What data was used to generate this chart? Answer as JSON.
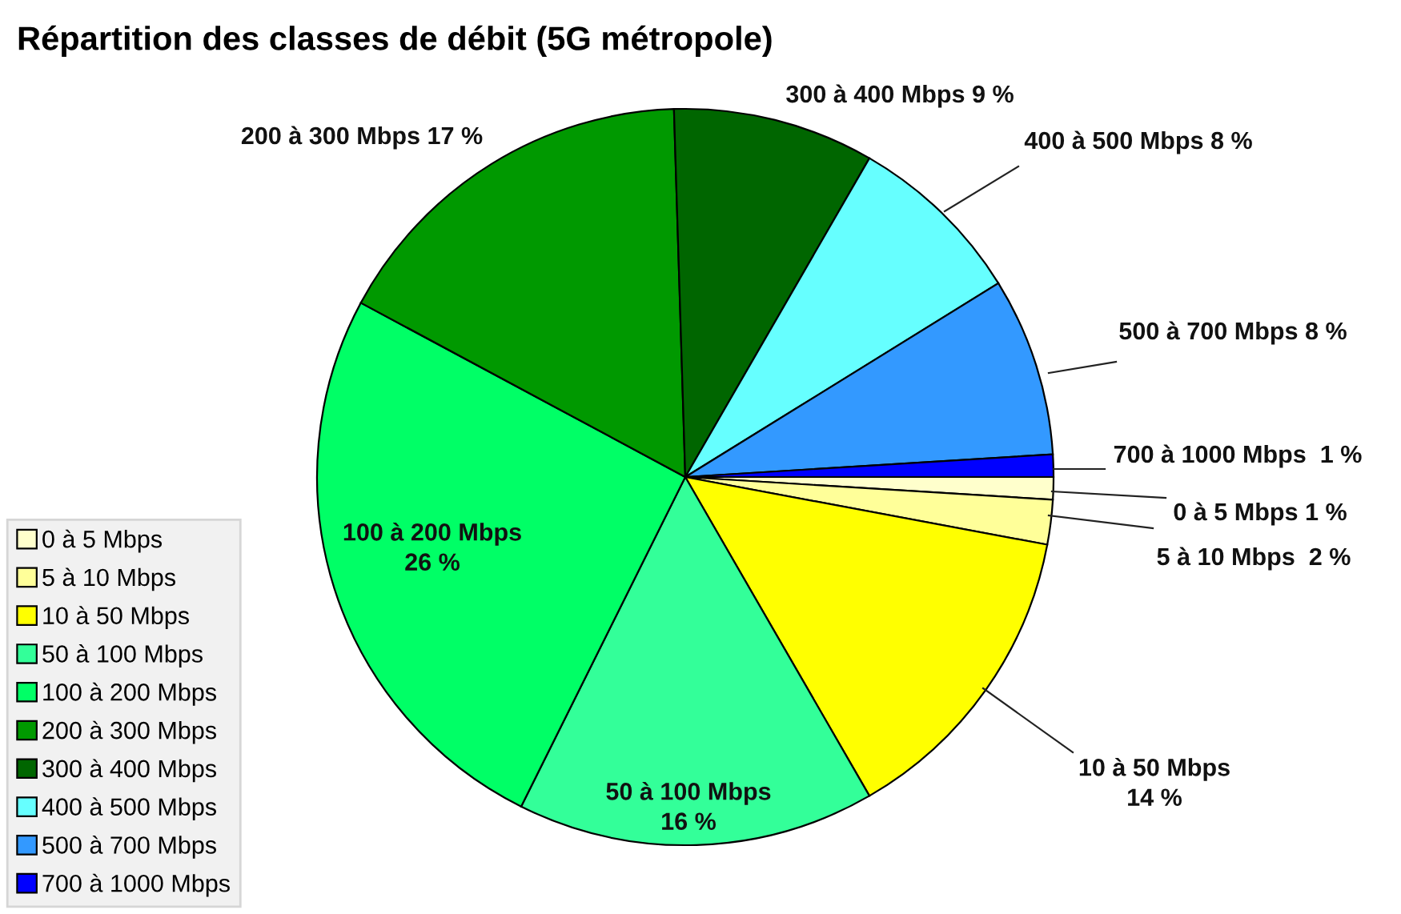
{
  "chart_data": {
    "type": "pie",
    "title": "Répartition des classes de débit (5G métropole)",
    "categories": [
      "0 à 5 Mbps",
      "5 à 10 Mbps",
      "10 à 50 Mbps",
      "50 à 100 Mbps",
      "100 à 200 Mbps",
      "200 à 300 Mbps",
      "300 à 400 Mbps",
      "400 à 500 Mbps",
      "500 à 700 Mbps",
      "700 à 1000 Mbps"
    ],
    "values": [
      1,
      2,
      14,
      16,
      26,
      17,
      9,
      8,
      8,
      1
    ],
    "colors": [
      "#ffffcc",
      "#ffff99",
      "#ffff00",
      "#33ff99",
      "#00ff66",
      "#009900",
      "#006600",
      "#66ffff",
      "#3399ff",
      "#0000ff"
    ],
    "value_labels": [
      "0 à 5 Mbps 1 %",
      "5 à 10 Mbps  2 %",
      "10 à 50 Mbps\n14 %",
      "50 à 100 Mbps\n16 %",
      "100 à 200 Mbps\n26 %",
      "200 à 300 Mbps 17 %",
      "300 à 400 Mbps 9 %",
      "400 à 500 Mbps 8 %",
      "500 à 700 Mbps 8 %",
      "700 à 1000 Mbps  1 %"
    ],
    "legend": "bottom left"
  }
}
